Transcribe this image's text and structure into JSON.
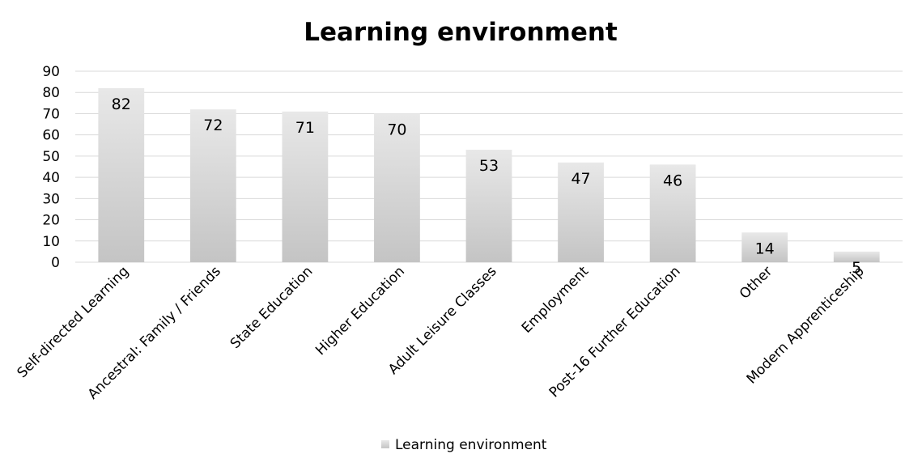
{
  "chart_data": {
    "type": "bar",
    "title": "Learning environment",
    "xlabel": "",
    "ylabel": "",
    "ylim": [
      0,
      90
    ],
    "yticks": [
      0,
      10,
      20,
      30,
      40,
      50,
      60,
      70,
      80,
      90
    ],
    "grid": true,
    "legend_position": "bottom",
    "categories": [
      "Self-directed Learning",
      "Ancestral: Family / Friends",
      "State Education",
      "Higher Education",
      "Adult Leisure Classes",
      "Employment",
      "Post-16 Further Education",
      "Other",
      "Modern Apprenticeship"
    ],
    "series": [
      {
        "name": "Learning environment",
        "values": [
          82,
          72,
          71,
          70,
          53,
          47,
          46,
          14,
          5
        ]
      }
    ],
    "colors": {
      "bar_top": "#e8e8e8",
      "bar_bottom": "#c4c4c4",
      "grid": "#d9d9d9"
    }
  }
}
